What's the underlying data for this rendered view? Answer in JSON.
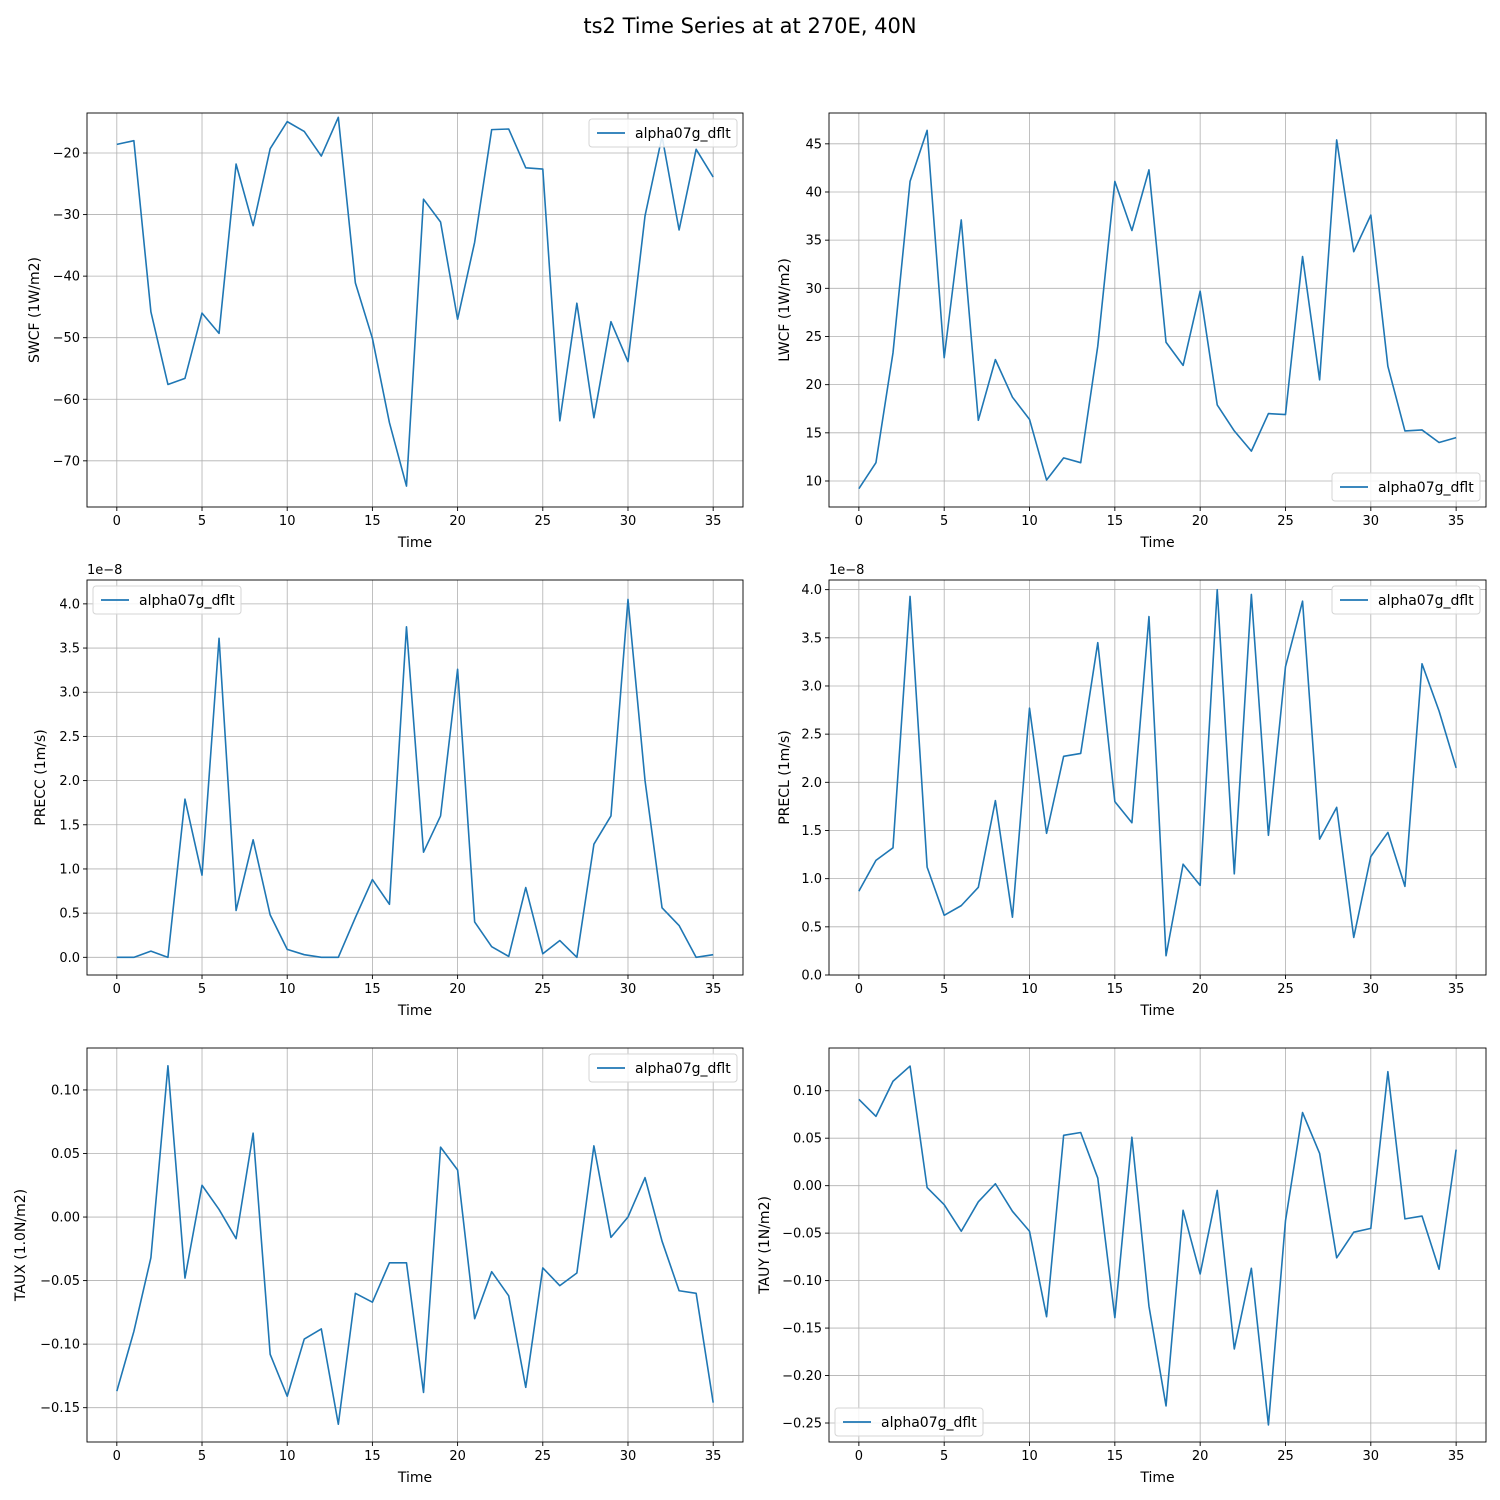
{
  "figure": {
    "title": "ts2 Time Series at at 270E, 40N"
  },
  "colors": {
    "line": "#1f77b4",
    "grid": "#b0b0b0",
    "axis": "#000000"
  },
  "chart_data": [
    {
      "type": "line",
      "xlabel": "Time",
      "ylabel": "SWCF (1W/m2)",
      "xlim": [
        -1.75,
        36.75
      ],
      "ylim": [
        -77.5,
        -13.5
      ],
      "xticks": [
        0,
        5,
        10,
        15,
        20,
        25,
        30,
        35
      ],
      "xtick_labels": [
        "0",
        "5",
        "10",
        "15",
        "20",
        "25",
        "30",
        "35"
      ],
      "yticks": [
        -70,
        -60,
        -50,
        -40,
        -30,
        -20
      ],
      "ytick_labels": [
        "−70",
        "−60",
        "−50",
        "−40",
        "−30",
        "−20"
      ],
      "offset_label": "",
      "legend_position": "upper right",
      "grid": true,
      "series": [
        {
          "name": "alpha07g_dflt",
          "x": [
            0,
            1,
            2,
            3,
            4,
            5,
            6,
            7,
            8,
            9,
            10,
            11,
            12,
            13,
            14,
            15,
            16,
            17,
            18,
            19,
            20,
            21,
            22,
            23,
            24,
            25,
            26,
            27,
            28,
            29,
            30,
            31,
            32,
            33,
            34,
            35
          ],
          "y": [
            -18.6,
            -18.0,
            -45.8,
            -57.6,
            -56.6,
            -46.0,
            -49.3,
            -21.8,
            -31.8,
            -19.3,
            -14.9,
            -16.5,
            -20.5,
            -14.2,
            -41.1,
            -50.1,
            -63.8,
            -74.1,
            -27.5,
            -31.2,
            -47.0,
            -34.5,
            -16.2,
            -16.1,
            -22.4,
            -22.6,
            -63.5,
            -44.4,
            -63.0,
            -47.4,
            -53.9,
            -30.2,
            -17.3,
            -32.5,
            -19.4,
            -23.9
          ]
        }
      ]
    },
    {
      "type": "line",
      "xlabel": "Time",
      "ylabel": "LWCF (1W/m2)",
      "xlim": [
        -1.75,
        36.75
      ],
      "ylim": [
        7.3,
        48.2
      ],
      "xticks": [
        0,
        5,
        10,
        15,
        20,
        25,
        30,
        35
      ],
      "xtick_labels": [
        "0",
        "5",
        "10",
        "15",
        "20",
        "25",
        "30",
        "35"
      ],
      "yticks": [
        10,
        15,
        20,
        25,
        30,
        35,
        40,
        45
      ],
      "ytick_labels": [
        "10",
        "15",
        "20",
        "25",
        "30",
        "35",
        "40",
        "45"
      ],
      "offset_label": "",
      "legend_position": "lower right",
      "grid": true,
      "series": [
        {
          "name": "alpha07g_dflt",
          "x": [
            0,
            1,
            2,
            3,
            4,
            5,
            6,
            7,
            8,
            9,
            10,
            11,
            12,
            13,
            14,
            15,
            16,
            17,
            18,
            19,
            20,
            21,
            22,
            23,
            24,
            25,
            26,
            27,
            28,
            29,
            30,
            31,
            32,
            33,
            34,
            35
          ],
          "y": [
            9.2,
            11.9,
            23.3,
            41.1,
            46.4,
            22.8,
            37.1,
            16.3,
            22.6,
            18.7,
            16.4,
            10.1,
            12.4,
            11.9,
            24.0,
            41.1,
            36.0,
            42.3,
            24.4,
            22.0,
            29.7,
            17.9,
            15.2,
            13.1,
            17.0,
            16.9,
            33.3,
            20.5,
            45.4,
            33.8,
            37.6,
            21.9,
            15.2,
            15.3,
            14.0,
            14.5
          ]
        }
      ]
    },
    {
      "type": "line",
      "xlabel": "Time",
      "ylabel": "PRECC (1m/s)",
      "xlim": [
        -1.75,
        36.75
      ],
      "ylim": [
        -0.2,
        4.27
      ],
      "xticks": [
        0,
        5,
        10,
        15,
        20,
        25,
        30,
        35
      ],
      "xtick_labels": [
        "0",
        "5",
        "10",
        "15",
        "20",
        "25",
        "30",
        "35"
      ],
      "yticks": [
        0,
        0.5,
        1.0,
        1.5,
        2.0,
        2.5,
        3.0,
        3.5,
        4.0
      ],
      "ytick_labels": [
        "0.0",
        "0.5",
        "1.0",
        "1.5",
        "2.0",
        "2.5",
        "3.0",
        "3.5",
        "4.0"
      ],
      "offset_label": "1e−8",
      "legend_position": "upper left",
      "grid": true,
      "series": [
        {
          "name": "alpha07g_dflt",
          "x": [
            0,
            1,
            2,
            3,
            4,
            5,
            6,
            7,
            8,
            9,
            10,
            11,
            12,
            13,
            14,
            15,
            16,
            17,
            18,
            19,
            20,
            21,
            22,
            23,
            24,
            25,
            26,
            27,
            28,
            29,
            30,
            31,
            32,
            33,
            34,
            35
          ],
          "y": [
            0.0,
            0.0,
            0.07,
            0.0,
            1.79,
            0.93,
            3.61,
            0.53,
            1.33,
            0.48,
            0.09,
            0.03,
            0.0,
            0.0,
            0.45,
            0.88,
            0.6,
            3.74,
            1.19,
            1.6,
            3.26,
            0.4,
            0.12,
            0.01,
            0.79,
            0.04,
            0.19,
            0.0,
            1.28,
            1.6,
            4.05,
            2.0,
            0.56,
            0.36,
            0.0,
            0.03
          ]
        }
      ]
    },
    {
      "type": "line",
      "xlabel": "Time",
      "ylabel": "PRECL (1m/s)",
      "xlim": [
        -1.75,
        36.75
      ],
      "ylim": [
        0,
        4.1
      ],
      "xticks": [
        0,
        5,
        10,
        15,
        20,
        25,
        30,
        35
      ],
      "xtick_labels": [
        "0",
        "5",
        "10",
        "15",
        "20",
        "25",
        "30",
        "35"
      ],
      "yticks": [
        0,
        0.5,
        1.0,
        1.5,
        2.0,
        2.5,
        3.0,
        3.5,
        4.0
      ],
      "ytick_labels": [
        "0.0",
        "0.5",
        "1.0",
        "1.5",
        "2.0",
        "2.5",
        "3.0",
        "3.5",
        "4.0"
      ],
      "offset_label": "1e−8",
      "legend_position": "upper right",
      "grid": true,
      "series": [
        {
          "name": "alpha07g_dflt",
          "x": [
            0,
            1,
            2,
            3,
            4,
            5,
            6,
            7,
            8,
            9,
            10,
            11,
            12,
            13,
            14,
            15,
            16,
            17,
            18,
            19,
            20,
            21,
            22,
            23,
            24,
            25,
            26,
            27,
            28,
            29,
            30,
            31,
            32,
            33,
            34,
            35
          ],
          "y": [
            0.87,
            1.19,
            1.32,
            3.93,
            1.12,
            0.62,
            0.72,
            0.91,
            1.81,
            0.6,
            2.77,
            1.47,
            2.27,
            2.3,
            3.45,
            1.8,
            1.58,
            3.72,
            0.2,
            1.15,
            0.93,
            4.0,
            1.05,
            3.95,
            1.45,
            3.2,
            3.88,
            1.41,
            1.74,
            0.39,
            1.23,
            1.48,
            0.92,
            3.23,
            2.74,
            2.15
          ]
        }
      ]
    },
    {
      "type": "line",
      "xlabel": "Time",
      "ylabel": "TAUX (1.0N/m2)",
      "xlim": [
        -1.75,
        36.75
      ],
      "ylim": [
        -0.177,
        0.133
      ],
      "xticks": [
        0,
        5,
        10,
        15,
        20,
        25,
        30,
        35
      ],
      "xtick_labels": [
        "0",
        "5",
        "10",
        "15",
        "20",
        "25",
        "30",
        "35"
      ],
      "yticks": [
        -0.15,
        -0.1,
        -0.05,
        0.0,
        0.05,
        0.1
      ],
      "ytick_labels": [
        "−0.15",
        "−0.10",
        "−0.05",
        "0.00",
        "0.05",
        "0.10"
      ],
      "offset_label": "",
      "legend_position": "upper right",
      "grid": true,
      "series": [
        {
          "name": "alpha07g_dflt",
          "x": [
            0,
            1,
            2,
            3,
            4,
            5,
            6,
            7,
            8,
            9,
            10,
            11,
            12,
            13,
            14,
            15,
            16,
            17,
            18,
            19,
            20,
            21,
            22,
            23,
            24,
            25,
            26,
            27,
            28,
            29,
            30,
            31,
            32,
            33,
            34,
            35
          ],
          "y": [
            -0.137,
            -0.09,
            -0.032,
            0.119,
            -0.048,
            0.025,
            0.006,
            -0.017,
            0.066,
            -0.108,
            -0.141,
            -0.096,
            -0.088,
            -0.163,
            -0.06,
            -0.067,
            -0.036,
            -0.036,
            -0.138,
            0.055,
            0.037,
            -0.08,
            -0.043,
            -0.062,
            -0.134,
            -0.04,
            -0.054,
            -0.044,
            0.056,
            -0.016,
            0.0,
            0.031,
            -0.019,
            -0.058,
            -0.06,
            -0.146
          ]
        }
      ]
    },
    {
      "type": "line",
      "xlabel": "Time",
      "ylabel": "TAUY (1N/m2)",
      "xlim": [
        -1.75,
        36.75
      ],
      "ylim": [
        -0.27,
        0.145
      ],
      "xticks": [
        0,
        5,
        10,
        15,
        20,
        25,
        30,
        35
      ],
      "xtick_labels": [
        "0",
        "5",
        "10",
        "15",
        "20",
        "25",
        "30",
        "35"
      ],
      "yticks": [
        -0.25,
        -0.2,
        -0.15,
        -0.1,
        -0.05,
        0.0,
        0.05,
        0.1
      ],
      "ytick_labels": [
        "−0.25",
        "−0.20",
        "−0.15",
        "−0.10",
        "−0.05",
        "0.00",
        "0.05",
        "0.10"
      ],
      "offset_label": "",
      "legend_position": "lower left",
      "grid": true,
      "series": [
        {
          "name": "alpha07g_dflt",
          "x": [
            0,
            1,
            2,
            3,
            4,
            5,
            6,
            7,
            8,
            9,
            10,
            11,
            12,
            13,
            14,
            15,
            16,
            17,
            18,
            19,
            20,
            21,
            22,
            23,
            24,
            25,
            26,
            27,
            28,
            29,
            30,
            31,
            32,
            33,
            34,
            35
          ],
          "y": [
            0.091,
            0.073,
            0.11,
            0.126,
            -0.002,
            -0.02,
            -0.048,
            -0.017,
            0.002,
            -0.027,
            -0.048,
            -0.138,
            0.053,
            0.056,
            0.008,
            -0.139,
            0.051,
            -0.127,
            -0.232,
            -0.026,
            -0.093,
            -0.005,
            -0.172,
            -0.087,
            -0.252,
            -0.037,
            0.077,
            0.034,
            -0.076,
            -0.049,
            -0.045,
            0.12,
            -0.035,
            -0.032,
            -0.088,
            0.038
          ]
        }
      ]
    }
  ]
}
